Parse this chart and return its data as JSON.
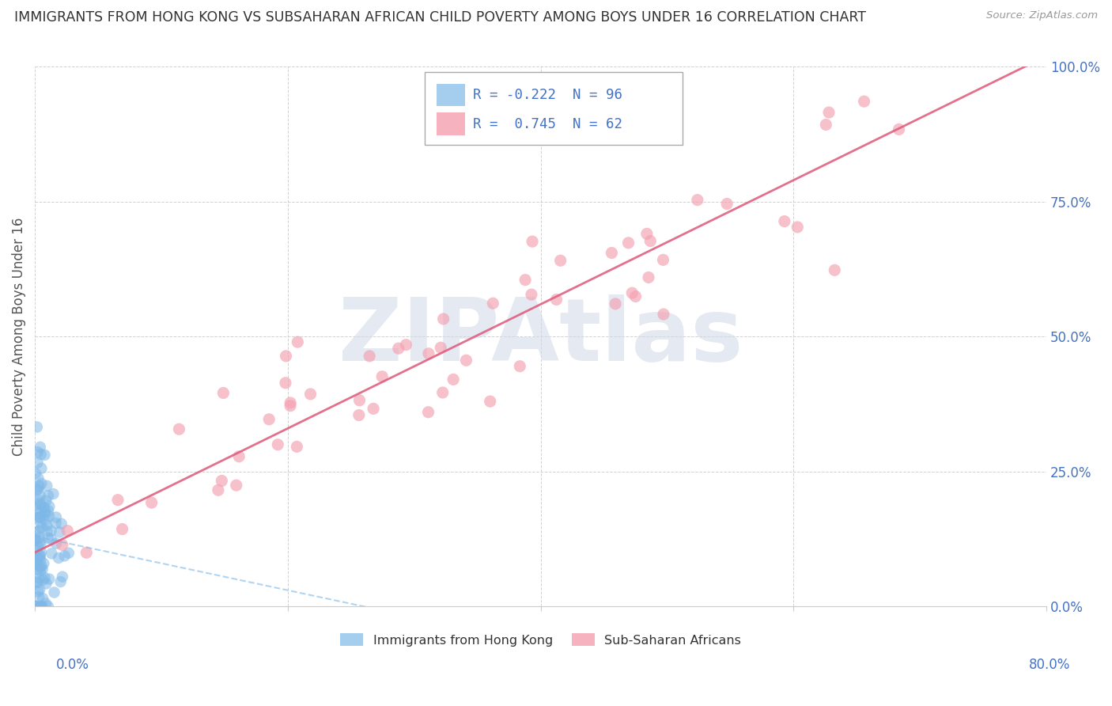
{
  "title": "IMMIGRANTS FROM HONG KONG VS SUBSAHARAN AFRICAN CHILD POVERTY AMONG BOYS UNDER 16 CORRELATION CHART",
  "source": "Source: ZipAtlas.com",
  "ylabel": "Child Poverty Among Boys Under 16",
  "xlim": [
    0.0,
    0.8
  ],
  "ylim": [
    0.0,
    1.0
  ],
  "xticks": [
    0.0,
    0.2,
    0.4,
    0.6,
    0.8
  ],
  "xtick_labels": [
    "0.0%",
    "",
    "",
    "",
    "80.0%"
  ],
  "yticks": [
    0.0,
    0.25,
    0.5,
    0.75,
    1.0
  ],
  "ytick_labels": [
    "0.0%",
    "25.0%",
    "50.0%",
    "75.0%",
    "100.0%"
  ],
  "blue_R": -0.222,
  "blue_N": 96,
  "pink_R": 0.745,
  "pink_N": 62,
  "blue_scatter_color": "#7EB8E8",
  "pink_scatter_color": "#F4A0B0",
  "legend_label_blue": "Immigrants from Hong Kong",
  "legend_label_pink": "Sub-Saharan Africans",
  "watermark": "ZIPAtlas",
  "background_color": "#ffffff",
  "grid_color": "#cccccc",
  "title_fontsize": 12.5,
  "blue_trend_color": "#7EB8E8",
  "pink_trend_color": "#E06080",
  "blue_trend_intercept": 0.13,
  "blue_trend_slope": -0.5,
  "pink_trend_intercept": 0.1,
  "pink_trend_slope": 1.15,
  "blue_seed": 7,
  "pink_seed": 3
}
